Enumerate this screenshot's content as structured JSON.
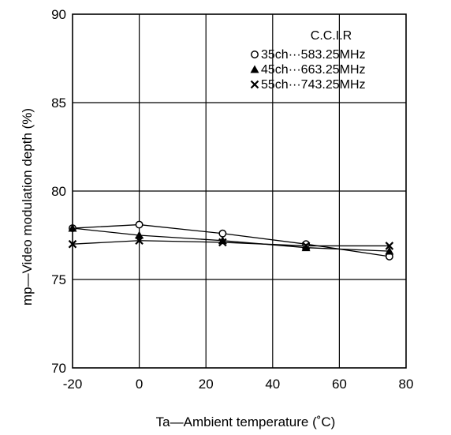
{
  "chart_data": {
    "type": "line",
    "xlabel": "Ta—Ambient temperature (˚C)",
    "ylabel": "mp—Video modulation depth (%)",
    "xlim": [
      -20,
      80
    ],
    "ylim": [
      70,
      90
    ],
    "xticks": [
      -20,
      0,
      20,
      40,
      60,
      80
    ],
    "yticks": [
      70,
      75,
      80,
      85,
      90
    ],
    "grid": true,
    "legend_title": "C.C.I.R",
    "legend_position": "top-right",
    "series": [
      {
        "name": "35ch···583.25MHz",
        "marker": "circle-open",
        "x": [
          -20,
          0,
          25,
          50,
          75
        ],
        "y": [
          77.9,
          78.1,
          77.6,
          77.0,
          76.3
        ]
      },
      {
        "name": "45ch···663.25MHz",
        "marker": "triangle-filled",
        "x": [
          -20,
          0,
          25,
          50,
          75
        ],
        "y": [
          77.9,
          77.5,
          77.2,
          76.8,
          76.6
        ]
      },
      {
        "name": "55ch···743.25MHz",
        "marker": "x",
        "x": [
          -20,
          0,
          25,
          50,
          75
        ],
        "y": [
          77.0,
          77.2,
          77.1,
          76.9,
          76.9
        ]
      }
    ]
  }
}
